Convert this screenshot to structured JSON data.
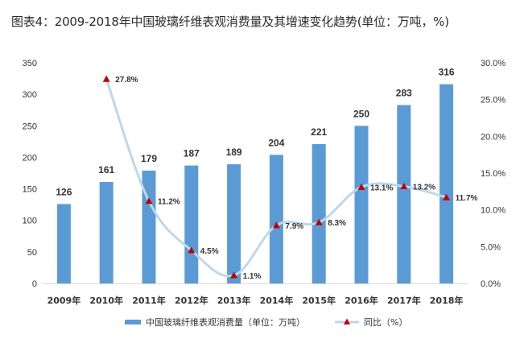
{
  "title": "图表4：2009-2018年中国玻璃纤维表观消费量及其增速变化趋势(单位：万吨，%)",
  "colors": {
    "bar": "#5b9bd5",
    "line": "#bdd7ee",
    "marker": "#c00000",
    "axis": "#d9d9d9"
  },
  "chart_data": {
    "type": "bar",
    "categories": [
      "2009年",
      "2010年",
      "2011年",
      "2012年",
      "2013年",
      "2014年",
      "2015年",
      "2016年",
      "2017年",
      "2018年"
    ],
    "series": [
      {
        "name": "中国玻璃纤维表观消费量（单位：万吨）",
        "type": "bar",
        "axis": "left",
        "values": [
          126,
          161,
          179,
          187,
          189,
          204,
          221,
          250,
          283,
          316
        ],
        "labels": [
          "126",
          "161",
          "179",
          "187",
          "189",
          "204",
          "221",
          "250",
          "283",
          "316"
        ]
      },
      {
        "name": "同比（%）",
        "type": "line",
        "axis": "right",
        "values": [
          null,
          27.8,
          11.2,
          4.5,
          1.1,
          7.9,
          8.3,
          13.1,
          13.2,
          11.7
        ],
        "labels": [
          "",
          "27.8%",
          "11.2%",
          "4.5%",
          "1.1%",
          "7.9%",
          "8.3%",
          "13.1%",
          "13.2%",
          "11.7%"
        ]
      }
    ],
    "y_left": {
      "min": 0,
      "max": 350,
      "ticks": [
        "0",
        "50",
        "100",
        "150",
        "200",
        "250",
        "300",
        "350"
      ]
    },
    "y_right": {
      "min": 0,
      "max": 30,
      "ticks": [
        "0.0%",
        "5.0%",
        "10.0%",
        "15.0%",
        "20.0%",
        "25.0%",
        "30.0%"
      ]
    },
    "grid": false,
    "legend_position": "bottom"
  }
}
